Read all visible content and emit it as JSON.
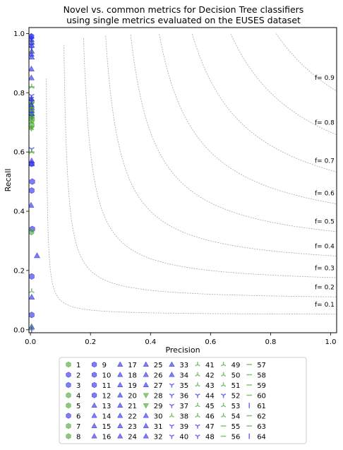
{
  "chart_data": {
    "type": "scatter",
    "title": "Novel vs. common metrics for Decision Tree classifiers",
    "subtitle": "using single metrics evaluated on the EUSES dataset",
    "xlabel": "Precision",
    "ylabel": "Recall",
    "xlim": [
      -0.005,
      1.02
    ],
    "ylim": [
      -0.01,
      1.02
    ],
    "xticks": [
      "0.0",
      "0.2",
      "0.4",
      "0.6",
      "0.8",
      "1.0"
    ],
    "yticks": [
      "0.0",
      "0.2",
      "0.4",
      "0.6",
      "0.8",
      "1.0"
    ],
    "grid": false,
    "legend_placement": "below plot, 9 columns",
    "f_isolines": [
      {
        "f": 0.1,
        "label": "f= 0.1"
      },
      {
        "f": 0.2,
        "label": "f= 0.2"
      },
      {
        "f": 0.3,
        "label": "f= 0.3"
      },
      {
        "f": 0.4,
        "label": "f= 0.4"
      },
      {
        "f": 0.5,
        "label": "f= 0.5"
      },
      {
        "f": 0.6,
        "label": "f= 0.6"
      },
      {
        "f": 0.7,
        "label": "f= 0.7"
      },
      {
        "f": 0.8,
        "label": "f= 0.8"
      },
      {
        "f": 0.9,
        "label": "f= 0.9"
      }
    ],
    "colors": {
      "green": "#4aa832",
      "blue": "#2f2fe6",
      "isoline": "#aaaaaa"
    },
    "series": [
      {
        "name": "1",
        "marker": "hexagon",
        "color": "green",
        "x": 0.004,
        "y": 0.72
      },
      {
        "name": "2",
        "marker": "hexagon",
        "color": "blue",
        "x": 0.004,
        "y": 0.05
      },
      {
        "name": "3",
        "marker": "hexagon",
        "color": "blue",
        "x": 0.006,
        "y": 0.34
      },
      {
        "name": "4",
        "marker": "hexagon",
        "color": "green",
        "x": 0.004,
        "y": 0.77
      },
      {
        "name": "5",
        "marker": "hexagon",
        "color": "green",
        "x": 0.004,
        "y": 0.69
      },
      {
        "name": "6",
        "marker": "hexagon",
        "color": "blue",
        "x": 0.004,
        "y": 0.18
      },
      {
        "name": "7",
        "marker": "hexagon",
        "color": "green",
        "x": 0.003,
        "y": 0.33
      },
      {
        "name": "8",
        "marker": "hexagon",
        "color": "green",
        "x": 0.005,
        "y": 0.71
      },
      {
        "name": "9",
        "marker": "hexagon",
        "color": "blue",
        "x": 0.004,
        "y": 0.47
      },
      {
        "name": "10",
        "marker": "hexagon",
        "color": "blue",
        "x": 0.003,
        "y": 0.99
      },
      {
        "name": "11",
        "marker": "hexagon",
        "color": "blue",
        "x": 0.004,
        "y": 0.56
      },
      {
        "name": "12",
        "marker": "hexagon",
        "color": "blue",
        "x": 0.006,
        "y": 0.5
      },
      {
        "name": "13",
        "marker": "triangle-up",
        "color": "blue",
        "x": 0.002,
        "y": 0.42
      },
      {
        "name": "14",
        "marker": "triangle-up",
        "color": "blue",
        "x": 0.003,
        "y": 0.88
      },
      {
        "name": "15",
        "marker": "triangle-up",
        "color": "blue",
        "x": 0.004,
        "y": 0.92
      },
      {
        "name": "16",
        "marker": "triangle-up",
        "color": "blue",
        "x": 0.003,
        "y": 0.85
      },
      {
        "name": "17",
        "marker": "triangle-up",
        "color": "blue",
        "x": 0.004,
        "y": 0.75
      },
      {
        "name": "18",
        "marker": "triangle-up",
        "color": "blue",
        "x": 0.004,
        "y": 0.56
      },
      {
        "name": "19",
        "marker": "triangle-up",
        "color": "blue",
        "x": 0.022,
        "y": 0.25
      },
      {
        "name": "20",
        "marker": "triangle-up",
        "color": "blue",
        "x": 0.004,
        "y": 0.11
      },
      {
        "name": "21",
        "marker": "triangle-up",
        "color": "blue",
        "x": 0.004,
        "y": 0.01
      },
      {
        "name": "22",
        "marker": "triangle-up",
        "color": "blue",
        "x": 0.004,
        "y": 0.97
      },
      {
        "name": "23",
        "marker": "triangle-up",
        "color": "blue",
        "x": 0.004,
        "y": 0.94
      },
      {
        "name": "24",
        "marker": "triangle-up",
        "color": "blue",
        "x": 0.003,
        "y": 0.78
      },
      {
        "name": "25",
        "marker": "triangle-up",
        "color": "blue",
        "x": 0.004,
        "y": 0.73
      },
      {
        "name": "26",
        "marker": "triangle-up",
        "color": "blue",
        "x": 0.003,
        "y": 0.99
      },
      {
        "name": "27",
        "marker": "triangle-up",
        "color": "blue",
        "x": 0.004,
        "y": 0.57
      },
      {
        "name": "28",
        "marker": "triangle-down",
        "color": "green",
        "x": 0.003,
        "y": 0.68
      },
      {
        "name": "29",
        "marker": "triangle-down",
        "color": "green",
        "x": 0.003,
        "y": 0.76
      },
      {
        "name": "30",
        "marker": "triangle-up",
        "color": "blue",
        "x": 0.004,
        "y": 0.96
      },
      {
        "name": "31",
        "marker": "triangle-up",
        "color": "blue",
        "x": 0.003,
        "y": 0.98
      },
      {
        "name": "32",
        "marker": "triangle-up",
        "color": "blue",
        "x": 0.004,
        "y": 0.74
      },
      {
        "name": "33",
        "marker": "triangle-up",
        "color": "blue",
        "x": 0.003,
        "y": 0.76
      },
      {
        "name": "34",
        "marker": "triangle-up",
        "color": "blue",
        "x": 0.003,
        "y": 0.93
      },
      {
        "name": "35",
        "marker": "tri-down",
        "color": "blue",
        "x": 0.004,
        "y": 0.79
      },
      {
        "name": "36",
        "marker": "tri-down",
        "color": "blue",
        "x": 0.004,
        "y": 0.61
      },
      {
        "name": "37",
        "marker": "tri-down",
        "color": "blue",
        "x": 0.003,
        "y": 0.75
      },
      {
        "name": "38",
        "marker": "tri-up",
        "color": "green",
        "x": 0.004,
        "y": 0.13
      },
      {
        "name": "39",
        "marker": "tri-down",
        "color": "blue",
        "x": 0.004,
        "y": 0.72
      },
      {
        "name": "40",
        "marker": "tri-down",
        "color": "blue",
        "x": 0.003,
        "y": 0.78
      },
      {
        "name": "41",
        "marker": "tri-up",
        "color": "green",
        "x": 0.003,
        "y": 0.7
      },
      {
        "name": "42",
        "marker": "tri-up",
        "color": "green",
        "x": 0.004,
        "y": 0.82
      },
      {
        "name": "43",
        "marker": "tri-up",
        "color": "green",
        "x": 0.004,
        "y": 0.74
      },
      {
        "name": "44",
        "marker": "tri-down",
        "color": "blue",
        "x": 0.003,
        "y": 0.73
      },
      {
        "name": "45",
        "marker": "tri-up",
        "color": "green",
        "x": 0.003,
        "y": 0.01
      },
      {
        "name": "46",
        "marker": "tri-up",
        "color": "green",
        "x": 0.003,
        "y": 0.94
      },
      {
        "name": "47",
        "marker": "tri-down",
        "color": "blue",
        "x": 0.003,
        "y": 0.96
      },
      {
        "name": "48",
        "marker": "tri-down",
        "color": "blue",
        "x": 0.004,
        "y": 0.77
      },
      {
        "name": "49",
        "marker": "tri-up",
        "color": "green",
        "x": 0.003,
        "y": 0.71
      },
      {
        "name": "50",
        "marker": "tri-up",
        "color": "green",
        "x": 0.004,
        "y": 0.6
      },
      {
        "name": "51",
        "marker": "tri-up",
        "color": "green",
        "x": 0.003,
        "y": 0.72
      },
      {
        "name": "52",
        "marker": "tri-down",
        "color": "blue",
        "x": 0.004,
        "y": 0.95
      },
      {
        "name": "53",
        "marker": "tri-up",
        "color": "green",
        "x": 0.003,
        "y": 0.75
      },
      {
        "name": "54",
        "marker": "tri-up",
        "color": "green",
        "x": 0.003,
        "y": 0.68
      },
      {
        "name": "55",
        "marker": "hline",
        "color": "green",
        "x": 0.004,
        "y": 0.82
      },
      {
        "name": "56",
        "marker": "hline",
        "color": "green",
        "x": 0.003,
        "y": 0.0
      },
      {
        "name": "57",
        "marker": "hline",
        "color": "green",
        "x": 0.003,
        "y": 0.74
      },
      {
        "name": "58",
        "marker": "hline",
        "color": "green",
        "x": 0.003,
        "y": 0.97
      },
      {
        "name": "59",
        "marker": "hline",
        "color": "green",
        "x": 0.004,
        "y": 0.6
      },
      {
        "name": "60",
        "marker": "hline",
        "color": "green",
        "x": 0.003,
        "y": 0.7
      },
      {
        "name": "61",
        "marker": "vline",
        "color": "blue",
        "x": 0.004,
        "y": 0.0
      },
      {
        "name": "62",
        "marker": "hline",
        "color": "green",
        "x": 0.003,
        "y": 0.73
      },
      {
        "name": "63",
        "marker": "hline",
        "color": "green",
        "x": 0.004,
        "y": 0.75
      },
      {
        "name": "64",
        "marker": "vline",
        "color": "blue",
        "x": 0.003,
        "y": 0.98
      }
    ]
  }
}
